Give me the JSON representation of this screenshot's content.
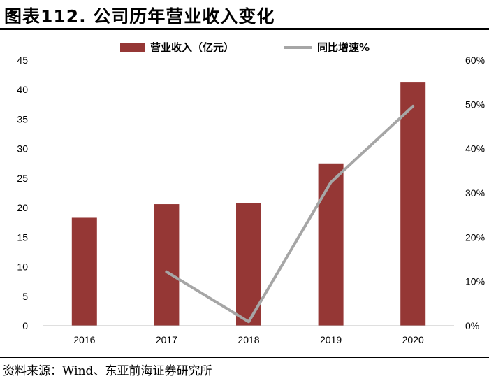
{
  "figure": {
    "title": "图表112. 公司历年营业收入变化",
    "source": "资料来源：Wind、东亚前海证券研究所"
  },
  "chart_data": {
    "type": "bar",
    "categories": [
      "2016",
      "2017",
      "2018",
      "2019",
      "2020"
    ],
    "series": [
      {
        "name": "营业收入（亿元）",
        "type": "bar",
        "axis": "left",
        "color": "#953735",
        "values": [
          18.3,
          20.6,
          20.8,
          27.5,
          41.2
        ]
      },
      {
        "name": "同比增速%",
        "type": "line",
        "axis": "right",
        "color": "#A6A6A6",
        "values": [
          null,
          12.2,
          0.9,
          32.4,
          49.6
        ]
      }
    ],
    "ylim": [
      0,
      45
    ],
    "yticks": [
      0,
      5,
      10,
      15,
      20,
      25,
      30,
      35,
      40,
      45
    ],
    "y2lim": [
      0,
      60
    ],
    "y2ticks": [
      "0%",
      "10%",
      "20%",
      "30%",
      "40%",
      "50%",
      "60%"
    ],
    "grid": false,
    "legend": "top-center"
  }
}
